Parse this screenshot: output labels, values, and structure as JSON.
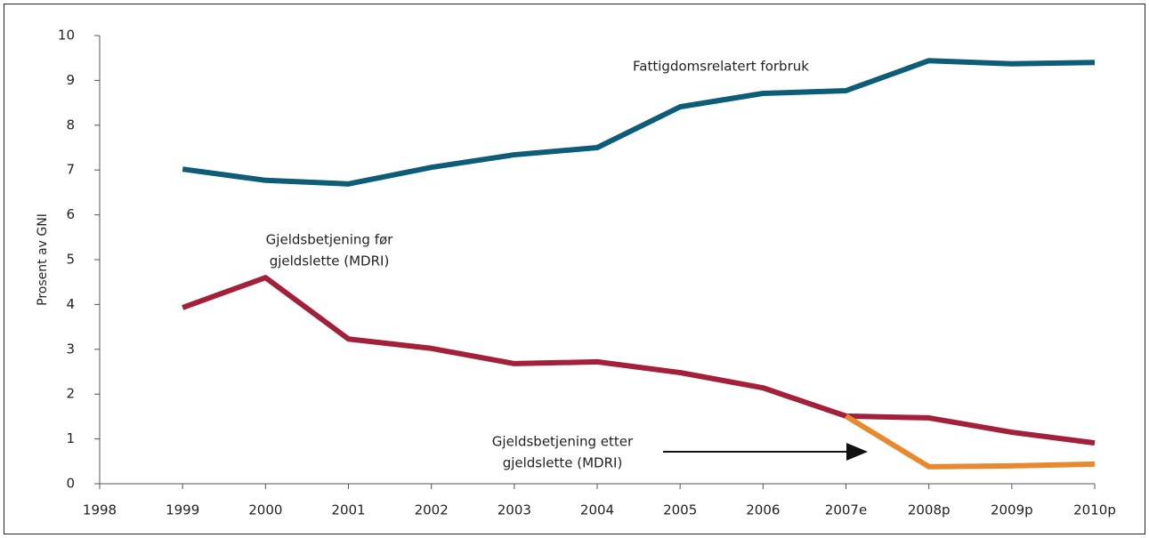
{
  "chart_data": {
    "type": "line",
    "y_label": "Prosent av GNI",
    "categories": [
      "1998",
      "1999",
      "2000",
      "2001",
      "2002",
      "2003",
      "2004",
      "2005",
      "2006",
      "2007e",
      "2008p",
      "2009p",
      "2010p"
    ],
    "series": [
      {
        "label": [
          "Fattigdomsrelatert forbruk"
        ],
        "color": "#0d5c78",
        "values": [
          null,
          7.02,
          6.77,
          6.69,
          7.06,
          7.34,
          7.5,
          8.41,
          8.71,
          8.77,
          9.44,
          9.37,
          9.4
        ]
      },
      {
        "label": [
          "Gjeldsbetjening før",
          "gjeldslette (MDRI)"
        ],
        "color": "#a3203a",
        "values": [
          null,
          3.93,
          4.6,
          3.23,
          3.02,
          2.68,
          2.72,
          2.48,
          2.14,
          1.51,
          1.47,
          1.15,
          0.91
        ]
      },
      {
        "label": [
          "Gjeldsbetjening etter",
          "gjeldslette (MDRI)"
        ],
        "color": "#e8892e",
        "values": [
          null,
          null,
          null,
          null,
          null,
          null,
          null,
          null,
          null,
          1.51,
          0.38,
          0.4,
          0.44
        ]
      }
    ],
    "ylim": [
      0,
      10
    ],
    "yticks": [
      0,
      1,
      2,
      3,
      4,
      5,
      6,
      7,
      8,
      9,
      10
    ],
    "grid": false
  }
}
